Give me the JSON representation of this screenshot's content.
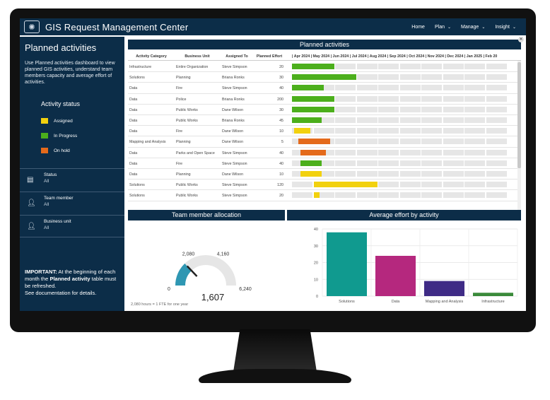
{
  "app": {
    "title": "GIS Request Management Center",
    "logo_icon": "globe-network-icon"
  },
  "nav": [
    {
      "label": "Home",
      "has_menu": false
    },
    {
      "label": "Plan",
      "has_menu": true
    },
    {
      "label": "Manage",
      "has_menu": true
    },
    {
      "label": "Insight",
      "has_menu": true
    }
  ],
  "sidebar": {
    "title": "Planned activities",
    "description": "Use Planned activities dashboard to view planned GIS activities, understand team members capacity and average effort of activities.",
    "status_title": "Activity status",
    "legend": [
      {
        "label": "Assigned",
        "color": "#f2d10e"
      },
      {
        "label": "In Progress",
        "color": "#4caf1c"
      },
      {
        "label": "On hold",
        "color": "#e46a1b"
      }
    ],
    "filters": [
      {
        "label": "Status",
        "value": "All",
        "icon": "filter-list-icon"
      },
      {
        "label": "Team member",
        "value": "All",
        "icon": "person-icon"
      },
      {
        "label": "Business unit",
        "value": "All",
        "icon": "person-icon"
      }
    ],
    "important_prefix": "IMPORTANT:",
    "important_text_1": " At the beginning of each month the ",
    "important_bold": "Planned activity",
    "important_text_2": " table must be refreshed.",
    "important_text_3": "See documentation for details."
  },
  "planned": {
    "header": "Planned activities",
    "columns": [
      "Activity Category",
      "Business Unit",
      "Assigned To",
      "Planned Effort"
    ],
    "months_header": "| Apr 2024 | May 2024 | Jun 2024 | Jul 2024 | Aug 2024 | Sep 2024 | Oct 2024 | Nov 2024 | Dec 2024 | Jan 2025 | Feb 20",
    "rows": [
      {
        "category": "Infrastructure",
        "unit": "Entire Organization",
        "assigned": "Steve Simpson",
        "effort": "20",
        "status": "In Progress",
        "start": 0,
        "span": 2
      },
      {
        "category": "Solutions",
        "unit": "Planning",
        "assigned": "Briana Ronks",
        "effort": "30",
        "status": "In Progress",
        "start": 0,
        "span": 3
      },
      {
        "category": "Data",
        "unit": "Fire",
        "assigned": "Steve Simpson",
        "effort": "40",
        "status": "In Progress",
        "start": 0,
        "span": 1.5
      },
      {
        "category": "Data",
        "unit": "Police",
        "assigned": "Briana Ronks",
        "effort": "200",
        "status": "In Progress",
        "start": 0,
        "span": 2
      },
      {
        "category": "Data",
        "unit": "Public Works",
        "assigned": "Dane Wilson",
        "effort": "30",
        "status": "In Progress",
        "start": 0,
        "span": 2
      },
      {
        "category": "Data",
        "unit": "Public Works",
        "assigned": "Briana Ronks",
        "effort": "45",
        "status": "In Progress",
        "start": 0,
        "span": 1.4
      },
      {
        "category": "Data",
        "unit": "Fire",
        "assigned": "Dane Wilson",
        "effort": "10",
        "status": "Assigned",
        "start": 0.1,
        "span": 0.8
      },
      {
        "category": "Mapping and Analysis",
        "unit": "Planning",
        "assigned": "Dane Wilson",
        "effort": "5",
        "status": "On hold",
        "start": 0.3,
        "span": 1.5
      },
      {
        "category": "Data",
        "unit": "Parks and Open Space",
        "assigned": "Steve Simpson",
        "effort": "40",
        "status": "On hold",
        "start": 0.4,
        "span": 1.2
      },
      {
        "category": "Data",
        "unit": "Fire",
        "assigned": "Steve Simpson",
        "effort": "40",
        "status": "In Progress",
        "start": 0.4,
        "span": 1
      },
      {
        "category": "Data",
        "unit": "Planning",
        "assigned": "Dane Wilson",
        "effort": "10",
        "status": "Assigned",
        "start": 0.4,
        "span": 1
      },
      {
        "category": "Solutions",
        "unit": "Public Works",
        "assigned": "Steve Simpson",
        "effort": "120",
        "status": "Assigned",
        "start": 1,
        "span": 3
      },
      {
        "category": "Solutions",
        "unit": "Public Works",
        "assigned": "Steve Simpson",
        "effort": "20",
        "status": "Assigned",
        "start": 1,
        "span": 0.3
      }
    ]
  },
  "team_allocation": {
    "header": "Team member allocation",
    "value": 1607,
    "value_label": "1,607",
    "min_label": "0",
    "max_label": "6,240",
    "tick1_label": "2,080",
    "tick2_label": "4,160",
    "min": 0,
    "max": 6240,
    "footnote": "2,080 hours = 1 FTE for one year",
    "color_track": "#e6e6e6",
    "color_fill": "#2f97b3"
  },
  "chart_data": {
    "type": "bar",
    "title": "Average effort by activity",
    "categories": [
      "Solutions",
      "Data",
      "Mapping and Analysis",
      "Infrastructure"
    ],
    "values": [
      38,
      24,
      9,
      2
    ],
    "colors": [
      "#109a8f",
      "#b5287e",
      "#3f2b86",
      "#3a8a3a"
    ],
    "ylim": [
      0,
      40
    ],
    "yticks": [
      "0",
      "10",
      "20",
      "30",
      "40"
    ],
    "grid": true
  }
}
